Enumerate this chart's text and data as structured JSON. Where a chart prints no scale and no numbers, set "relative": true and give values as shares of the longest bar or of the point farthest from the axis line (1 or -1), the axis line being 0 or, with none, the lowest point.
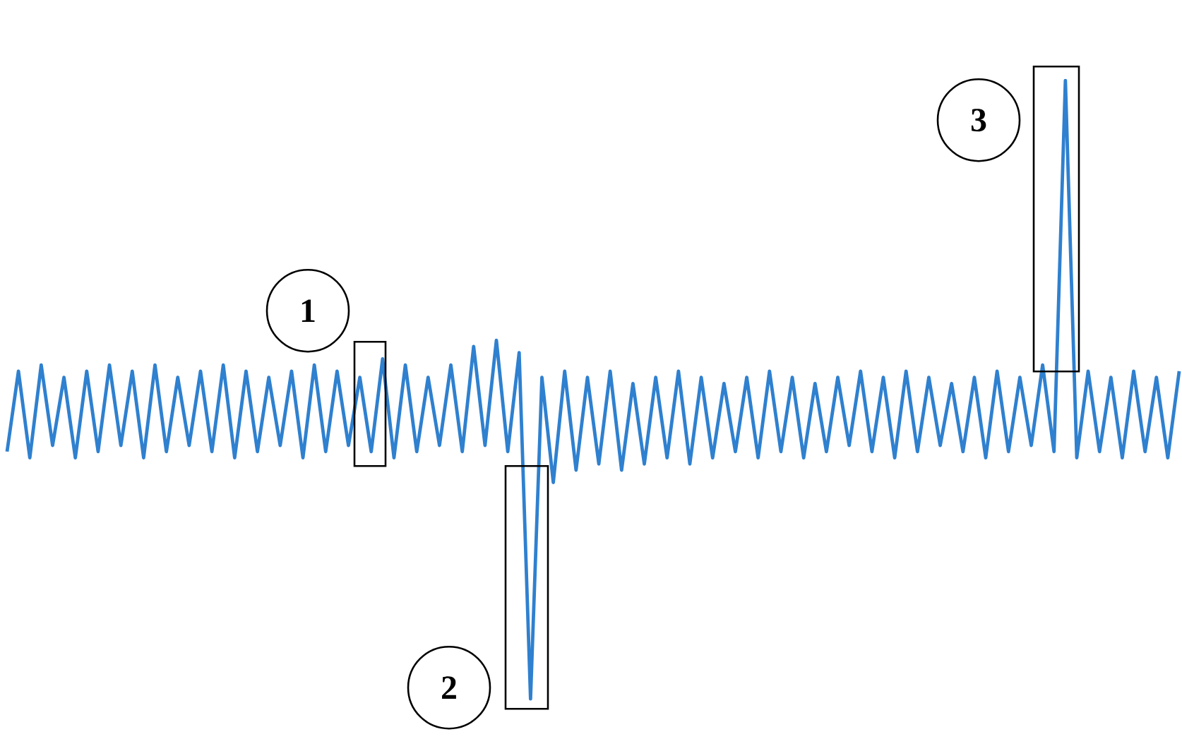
{
  "chart_data": {
    "type": "line",
    "relative": true,
    "color": "#2f80cf",
    "categories": [
      null,
      null,
      null,
      null,
      null,
      null,
      null,
      null,
      null,
      null,
      null,
      null,
      null,
      null,
      null,
      null,
      null,
      null,
      null,
      null,
      null,
      null,
      null,
      null,
      null,
      null,
      null,
      null,
      null,
      null,
      null,
      null,
      null,
      null,
      null,
      null,
      null,
      null,
      null,
      null,
      null,
      null,
      null,
      null,
      null,
      null,
      null,
      null,
      null,
      null,
      null,
      null,
      null,
      null,
      null,
      null,
      null,
      null,
      null,
      null,
      null,
      null,
      null,
      null,
      null,
      null,
      null,
      null,
      null,
      null,
      null,
      null,
      null,
      null,
      null,
      null,
      null,
      null,
      null,
      null,
      null,
      null,
      null,
      null,
      null,
      null,
      null,
      null,
      null,
      null,
      null,
      null,
      null,
      null,
      null,
      null,
      null,
      null,
      null,
      null,
      null,
      null,
      null,
      null
    ],
    "values": [
      0.4,
      0.53,
      0.39,
      0.54,
      0.41,
      0.52,
      0.39,
      0.53,
      0.4,
      0.54,
      0.41,
      0.53,
      0.39,
      0.54,
      0.4,
      0.52,
      0.41,
      0.53,
      0.4,
      0.54,
      0.39,
      0.53,
      0.4,
      0.52,
      0.41,
      0.53,
      0.39,
      0.54,
      0.4,
      0.53,
      0.41,
      0.52,
      0.4,
      0.55,
      0.39,
      0.54,
      0.4,
      0.52,
      0.41,
      0.54,
      0.4,
      0.57,
      0.41,
      0.58,
      0.4,
      0.56,
      0,
      0.52,
      0.35,
      0.53,
      0.37,
      0.52,
      0.38,
      0.53,
      0.37,
      0.51,
      0.38,
      0.52,
      0.39,
      0.53,
      0.38,
      0.52,
      0.39,
      0.51,
      0.4,
      0.52,
      0.39,
      0.53,
      0.4,
      0.52,
      0.39,
      0.51,
      0.4,
      0.52,
      0.41,
      0.53,
      0.4,
      0.52,
      0.39,
      0.53,
      0.4,
      0.52,
      0.41,
      0.51,
      0.4,
      0.52,
      0.39,
      0.53,
      0.4,
      0.52,
      0.41,
      0.54,
      0.4,
      1,
      0.39,
      0.53,
      0.4,
      0.52,
      0.39,
      0.53,
      0.4,
      0.52,
      0.39,
      0.53
    ],
    "annotations": [
      "1",
      "2",
      "3"
    ]
  }
}
